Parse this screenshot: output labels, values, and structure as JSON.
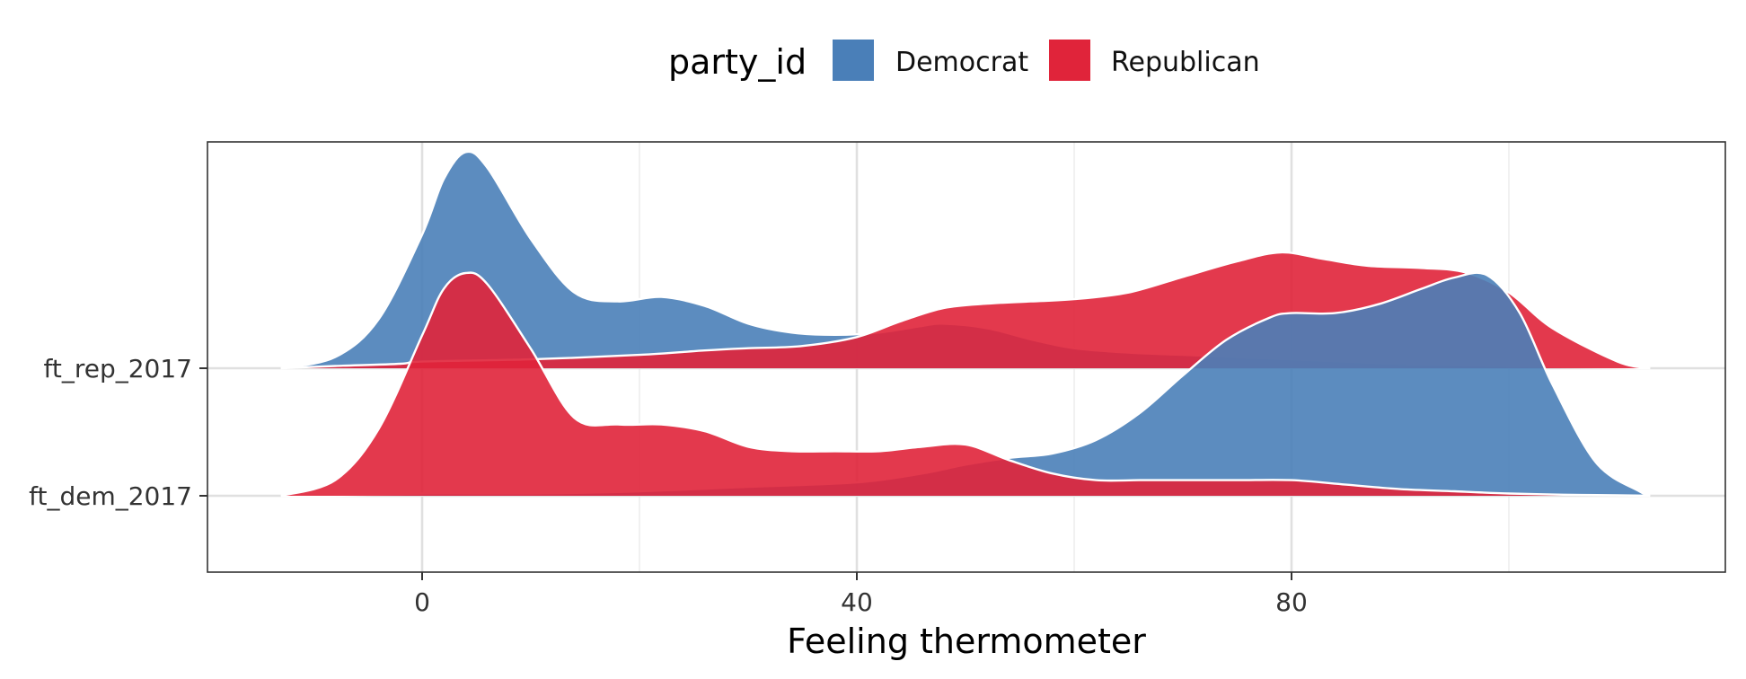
{
  "chart_data": {
    "type": "ridgeline",
    "xlabel": "Feeling thermometer",
    "ylabel": "",
    "xlim": [
      -20,
      120
    ],
    "x_ticks": [
      0,
      40,
      80
    ],
    "x_tick_labels": [
      "0",
      "40",
      "80"
    ],
    "x_minor_ticks": [
      20,
      60,
      100
    ],
    "grid": true,
    "legend": {
      "title": "party_id",
      "position": "top",
      "entries": [
        {
          "label": "Democrat",
          "color": "#4a7fb8"
        },
        {
          "label": "Republican",
          "color": "#e0243a"
        }
      ]
    },
    "rows": [
      {
        "label": "ft_rep_2017",
        "densities": [
          {
            "group": "Democrat",
            "x": [
              -13,
              -8,
              -4,
              0,
              2,
              4,
              6,
              10,
              14,
              18,
              22,
              26,
              30,
              34,
              38,
              42,
              46,
              48,
              52,
              56,
              60,
              65,
              70,
              75,
              80,
              85,
              90,
              95,
              100,
              105,
              110,
              113
            ],
            "y": [
              0.0,
              0.05,
              0.22,
              0.6,
              0.85,
              0.97,
              0.9,
              0.58,
              0.34,
              0.3,
              0.32,
              0.28,
              0.2,
              0.16,
              0.15,
              0.16,
              0.19,
              0.2,
              0.18,
              0.13,
              0.09,
              0.07,
              0.06,
              0.05,
              0.04,
              0.03,
              0.02,
              0.015,
              0.01,
              0.005,
              0.002,
              0.0
            ]
          },
          {
            "group": "Republican",
            "x": [
              -13,
              -8,
              -2,
              0,
              10,
              20,
              26,
              30,
              35,
              40,
              44,
              48,
              52,
              56,
              60,
              65,
              70,
              75,
              79,
              83,
              87,
              92,
              96,
              100,
              104,
              110,
              113
            ],
            "y": [
              0.0,
              0.01,
              0.02,
              0.03,
              0.04,
              0.06,
              0.08,
              0.09,
              0.1,
              0.14,
              0.21,
              0.27,
              0.29,
              0.3,
              0.31,
              0.34,
              0.41,
              0.48,
              0.52,
              0.49,
              0.46,
              0.45,
              0.43,
              0.34,
              0.18,
              0.03,
              0.0
            ]
          }
        ]
      },
      {
        "label": "ft_dem_2017",
        "densities": [
          {
            "group": "Democrat",
            "x": [
              -13,
              -8,
              0,
              10,
              20,
              30,
              40,
              46,
              50,
              54,
              58,
              62,
              66,
              70,
              74,
              78,
              80,
              84,
              88,
              92,
              95,
              98,
              101,
              104,
              108,
              112,
              113
            ],
            "y": [
              0.0,
              0.0,
              0.01,
              0.01,
              0.02,
              0.04,
              0.06,
              0.1,
              0.14,
              0.17,
              0.19,
              0.25,
              0.37,
              0.54,
              0.7,
              0.8,
              0.82,
              0.82,
              0.86,
              0.93,
              0.98,
              0.99,
              0.82,
              0.5,
              0.15,
              0.02,
              0.0
            ]
          },
          {
            "group": "Republican",
            "x": [
              -13,
              -8,
              -4,
              0,
              2,
              4,
              6,
              10,
              14,
              18,
              22,
              26,
              30,
              34,
              38,
              42,
              46,
              50,
              54,
              58,
              62,
              66,
              70,
              75,
              80,
              85,
              90,
              95,
              100,
              105,
              110,
              113
            ],
            "y": [
              0.0,
              0.07,
              0.3,
              0.72,
              0.93,
              1.0,
              0.95,
              0.66,
              0.35,
              0.32,
              0.32,
              0.29,
              0.22,
              0.2,
              0.2,
              0.2,
              0.22,
              0.23,
              0.16,
              0.1,
              0.07,
              0.07,
              0.07,
              0.07,
              0.07,
              0.05,
              0.03,
              0.02,
              0.01,
              0.005,
              0.002,
              0.0
            ]
          }
        ]
      }
    ]
  }
}
